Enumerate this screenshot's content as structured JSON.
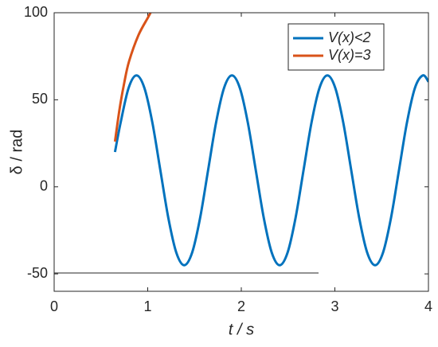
{
  "chart_data": {
    "type": "line",
    "xlabel": "t / s",
    "ylabel": "δ / rad",
    "xlim": [
      0,
      4
    ],
    "xticks": [
      0,
      1,
      2,
      3,
      4
    ],
    "ylim": [
      -60,
      100
    ],
    "yticks": [
      -50,
      0,
      50,
      100
    ],
    "legend": "northeast",
    "series": [
      {
        "name": "V(x)<2",
        "color": "#0072BD",
        "x": [
          0.65,
          0.71,
          0.795,
          0.88,
          0.965,
          1.05,
          1.135,
          1.22,
          1.305,
          1.39,
          1.475,
          1.56,
          1.645,
          1.73,
          1.815,
          1.9,
          1.985,
          2.07,
          2.155,
          2.24,
          2.325,
          2.41,
          2.495,
          2.58,
          2.665,
          2.75,
          2.835,
          2.92,
          3.005,
          3.09,
          3.175,
          3.26,
          3.345,
          3.43,
          3.515,
          3.6,
          3.685,
          3.77,
          3.855,
          3.94,
          4.0
        ],
        "values": [
          20,
          36.8,
          56.7,
          64,
          56.7,
          36.8,
          9.5,
          -17.8,
          -37.7,
          -45,
          -37.7,
          -17.8,
          9.5,
          36.8,
          56.7,
          64,
          56.7,
          36.8,
          9.5,
          -17.8,
          -37.7,
          -45,
          -37.7,
          -17.8,
          9.5,
          36.8,
          56.7,
          64,
          56.7,
          36.8,
          9.5,
          -17.8,
          -37.7,
          -45,
          -37.7,
          -17.8,
          9.5,
          36.8,
          56.7,
          64,
          60.4
        ]
      },
      {
        "name": "V(x)=3",
        "color": "#D95319",
        "x": [
          0.65,
          0.7,
          0.75,
          0.8,
          0.9,
          1.0,
          1.03
        ],
        "values": [
          26,
          45,
          60,
          72,
          87,
          97,
          100
        ]
      }
    ]
  }
}
